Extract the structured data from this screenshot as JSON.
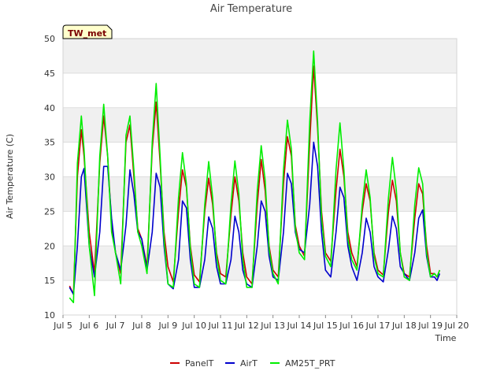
{
  "chart_data": {
    "type": "line",
    "title": "Air Temperature",
    "xlabel": "Time",
    "ylabel": "Air Temperature (C)",
    "badge": "TW_met",
    "ylim": [
      10,
      50
    ],
    "yticks": [
      10,
      15,
      20,
      25,
      30,
      35,
      40,
      45,
      50
    ],
    "xlim": [
      5,
      20
    ],
    "xticks": [
      5,
      6,
      7,
      8,
      9,
      10,
      11,
      12,
      13,
      14,
      15,
      16,
      17,
      18,
      19,
      20
    ],
    "xticklabels": [
      "Jul 5",
      "Jul 6",
      "Jul 7",
      "Jul 8",
      "Jul 9",
      "Jul 10",
      "Jul 11",
      "Jul 12",
      "Jul 13",
      "Jul 14",
      "Jul 15",
      "Jul 16",
      "Jul 17",
      "Jul 18",
      "Jul 19",
      "Jul 20"
    ],
    "x_units": "day of July",
    "grid": true,
    "legend_position": "bottom",
    "series": [
      {
        "name": "PanelT",
        "color": "#cc0000",
        "x": [
          5.25,
          5.4,
          5.55,
          5.7,
          5.8,
          6.0,
          6.2,
          6.4,
          6.55,
          6.7,
          6.85,
          7.0,
          7.2,
          7.4,
          7.55,
          7.7,
          7.85,
          8.0,
          8.2,
          8.4,
          8.55,
          8.7,
          8.85,
          9.0,
          9.2,
          9.4,
          9.55,
          9.7,
          9.85,
          10.0,
          10.2,
          10.4,
          10.55,
          10.7,
          10.85,
          11.0,
          11.2,
          11.4,
          11.55,
          11.7,
          11.85,
          12.0,
          12.2,
          12.4,
          12.55,
          12.7,
          12.85,
          13.0,
          13.2,
          13.4,
          13.55,
          13.7,
          13.85,
          14.0,
          14.2,
          14.4,
          14.55,
          14.7,
          14.85,
          15.0,
          15.2,
          15.4,
          15.55,
          15.7,
          15.85,
          16.0,
          16.2,
          16.4,
          16.55,
          16.7,
          16.85,
          17.0,
          17.2,
          17.4,
          17.55,
          17.7,
          17.85,
          18.0,
          18.2,
          18.4,
          18.55,
          18.7,
          18.85,
          19.0,
          19.15,
          19.25,
          19.35
        ],
        "y": [
          14.2,
          13.0,
          30.0,
          36.8,
          33.0,
          22.0,
          16.0,
          32.0,
          38.8,
          33.0,
          23.0,
          19.0,
          16.0,
          35.0,
          37.5,
          30.0,
          22.5,
          21.0,
          17.0,
          34.0,
          40.8,
          32.0,
          22.0,
          17.0,
          14.8,
          25.0,
          31.0,
          28.5,
          20.0,
          15.8,
          14.8,
          25.0,
          29.8,
          26.0,
          19.0,
          16.0,
          15.5,
          24.5,
          30.0,
          26.5,
          19.0,
          15.5,
          14.5,
          26.0,
          32.5,
          28.0,
          20.0,
          16.5,
          15.5,
          29.0,
          35.8,
          33.0,
          23.0,
          20.0,
          18.5,
          35.0,
          46.0,
          37.0,
          25.0,
          19.0,
          17.8,
          28.0,
          34.0,
          30.0,
          22.0,
          19.0,
          17.0,
          25.0,
          29.0,
          26.5,
          19.0,
          16.5,
          15.8,
          25.0,
          29.5,
          26.5,
          19.0,
          16.0,
          15.5,
          24.0,
          29.0,
          27.5,
          20.0,
          16.0,
          16.0,
          15.5,
          16.5
        ]
      },
      {
        "name": "AirT",
        "color": "#0000cc",
        "x": [
          5.25,
          5.4,
          5.55,
          5.7,
          5.8,
          6.0,
          6.2,
          6.4,
          6.55,
          6.7,
          6.85,
          7.0,
          7.2,
          7.4,
          7.55,
          7.7,
          7.85,
          8.0,
          8.2,
          8.4,
          8.55,
          8.7,
          8.85,
          9.0,
          9.2,
          9.4,
          9.55,
          9.7,
          9.85,
          10.0,
          10.2,
          10.4,
          10.55,
          10.7,
          10.85,
          11.0,
          11.2,
          11.4,
          11.55,
          11.7,
          11.85,
          12.0,
          12.2,
          12.4,
          12.55,
          12.7,
          12.85,
          13.0,
          13.2,
          13.4,
          13.55,
          13.7,
          13.85,
          14.0,
          14.2,
          14.4,
          14.55,
          14.7,
          14.85,
          15.0,
          15.2,
          15.4,
          15.55,
          15.7,
          15.85,
          16.0,
          16.2,
          16.4,
          16.55,
          16.7,
          16.85,
          17.0,
          17.2,
          17.4,
          17.55,
          17.7,
          17.85,
          18.0,
          18.2,
          18.4,
          18.55,
          18.7,
          18.85,
          19.0,
          19.15,
          19.25,
          19.35
        ],
        "y": [
          14.0,
          13.0,
          20.0,
          30.0,
          31.2,
          20.0,
          15.5,
          22.0,
          31.5,
          31.5,
          24.0,
          19.0,
          16.5,
          23.0,
          31.0,
          27.5,
          22.0,
          21.0,
          16.5,
          22.0,
          30.5,
          28.5,
          20.0,
          14.5,
          13.8,
          18.0,
          26.5,
          25.5,
          18.0,
          14.0,
          14.0,
          18.0,
          24.2,
          22.5,
          17.0,
          14.5,
          14.5,
          18.0,
          24.3,
          22.0,
          16.5,
          14.5,
          14.0,
          20.0,
          26.5,
          25.0,
          18.5,
          15.5,
          15.0,
          22.0,
          30.5,
          29.0,
          22.0,
          19.5,
          19.0,
          26.0,
          35.0,
          31.5,
          22.0,
          16.5,
          15.5,
          22.0,
          28.5,
          27.0,
          20.0,
          17.0,
          15.0,
          19.0,
          24.0,
          22.0,
          17.0,
          15.5,
          14.8,
          19.5,
          24.3,
          22.5,
          17.0,
          16.0,
          15.0,
          19.0,
          24.0,
          25.2,
          18.5,
          15.5,
          15.5,
          15.0,
          16.0
        ]
      },
      {
        "name": "AM25T_PRT",
        "color": "#00ee00",
        "x": [
          5.25,
          5.4,
          5.55,
          5.7,
          5.8,
          6.0,
          6.2,
          6.4,
          6.55,
          6.7,
          6.85,
          7.0,
          7.2,
          7.4,
          7.55,
          7.7,
          7.85,
          8.0,
          8.2,
          8.4,
          8.55,
          8.7,
          8.85,
          9.0,
          9.2,
          9.4,
          9.55,
          9.7,
          9.85,
          10.0,
          10.2,
          10.4,
          10.55,
          10.7,
          10.85,
          11.0,
          11.2,
          11.4,
          11.55,
          11.7,
          11.85,
          12.0,
          12.2,
          12.4,
          12.55,
          12.7,
          12.85,
          13.0,
          13.2,
          13.4,
          13.55,
          13.7,
          13.85,
          14.0,
          14.2,
          14.4,
          14.55,
          14.7,
          14.85,
          15.0,
          15.2,
          15.4,
          15.55,
          15.7,
          15.85,
          16.0,
          16.2,
          16.4,
          16.55,
          16.7,
          16.85,
          17.0,
          17.2,
          17.4,
          17.55,
          17.7,
          17.85,
          18.0,
          18.2,
          18.4,
          18.55,
          18.7,
          18.85,
          19.0,
          19.15,
          19.25,
          19.35
        ],
        "y": [
          12.5,
          11.8,
          32.0,
          38.8,
          34.0,
          20.0,
          12.8,
          33.0,
          40.5,
          33.0,
          22.0,
          19.0,
          14.5,
          36.0,
          38.8,
          31.0,
          22.0,
          20.0,
          16.0,
          35.0,
          43.5,
          33.0,
          21.0,
          14.5,
          14.0,
          27.0,
          33.5,
          29.0,
          19.5,
          14.5,
          14.0,
          26.0,
          32.2,
          27.0,
          18.5,
          15.0,
          14.5,
          26.0,
          32.3,
          27.5,
          18.0,
          14.0,
          14.0,
          28.0,
          34.5,
          29.5,
          19.5,
          16.0,
          14.5,
          31.0,
          38.2,
          34.0,
          22.5,
          19.0,
          18.0,
          38.0,
          48.2,
          38.0,
          24.0,
          18.5,
          17.0,
          31.0,
          37.8,
          31.0,
          21.0,
          18.0,
          16.5,
          26.0,
          31.0,
          27.0,
          18.5,
          16.0,
          15.5,
          27.0,
          32.8,
          28.0,
          19.0,
          15.5,
          15.0,
          26.0,
          31.3,
          29.0,
          19.0,
          15.5,
          16.0,
          15.5,
          16.5
        ]
      }
    ]
  }
}
